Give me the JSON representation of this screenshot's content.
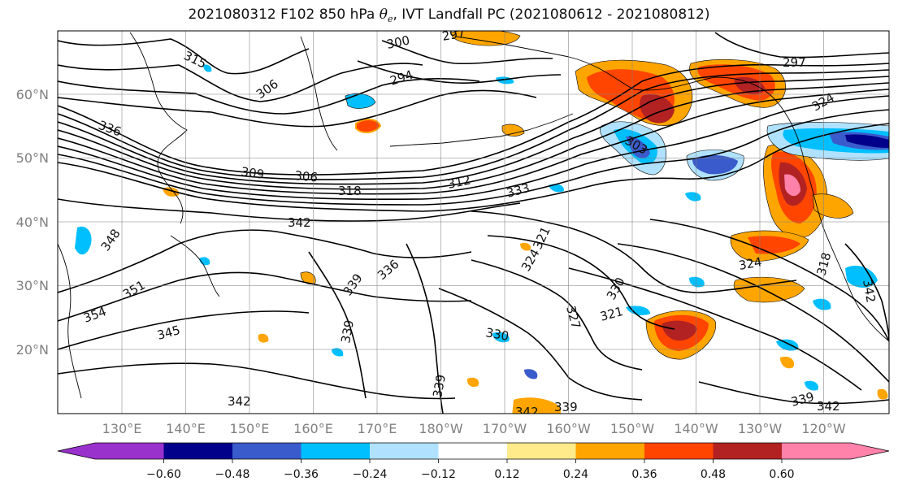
{
  "title": {
    "prefix": "2021080312 F102 850 hPa ",
    "theta": "θ",
    "theta_sub": "e",
    "suffix": ", IVT Landfall PC (2021080612 - 2021080812)"
  },
  "map": {
    "lon_ticks": [
      "130°E",
      "140°E",
      "150°E",
      "160°E",
      "170°E",
      "180°W",
      "170°W",
      "160°W",
      "150°W",
      "140°W",
      "130°W",
      "120°W"
    ],
    "lat_ticks": [
      "60°N",
      "50°N",
      "40°N",
      "30°N",
      "20°N"
    ],
    "contour_labels": [
      "315",
      "300",
      "297",
      "294",
      "306",
      "297",
      "324",
      "336",
      "309",
      "306",
      "318",
      "312",
      "303",
      "333",
      "342",
      "321",
      "324",
      "339",
      "336",
      "330",
      "348",
      "351",
      "354",
      "345",
      "339",
      "330",
      "327",
      "321",
      "324",
      "318",
      "339",
      "342",
      "339",
      "342",
      "339",
      "342",
      "342"
    ],
    "colors": {
      "contour": "#000000",
      "coast": "#000000",
      "grid": "#808080"
    }
  },
  "colorbar": {
    "colors": [
      "#9932CC",
      "#00008B",
      "#3A5BCB",
      "#00BFFF",
      "#B0E2FF",
      "#FFFFFF",
      "#FFEB8A",
      "#FFA500",
      "#FF4500",
      "#B22222",
      "#FF82AB"
    ],
    "tick_labels": [
      "−0.60",
      "−0.48",
      "−0.36",
      "−0.24",
      "−0.12",
      "0.12",
      "0.24",
      "0.36",
      "0.48",
      "0.60"
    ]
  }
}
